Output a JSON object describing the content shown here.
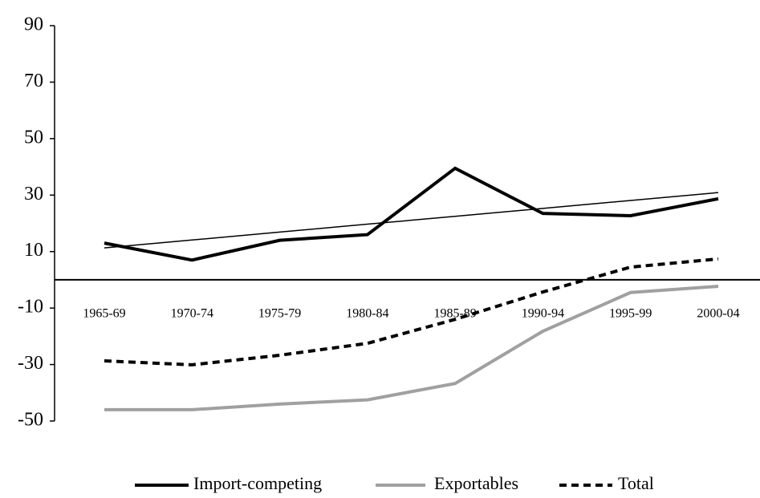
{
  "chart_data": {
    "type": "line",
    "categories": [
      "1965-69",
      "1970-74",
      "1975-79",
      "1980-84",
      "1985-89",
      "1990-94",
      "1995-99",
      "2000-04"
    ],
    "series": [
      {
        "name": "Import-competing",
        "color": "#000000",
        "width": 4,
        "values": [
          13,
          7,
          14,
          16,
          39.5,
          23.5,
          22.7,
          28.7
        ]
      },
      {
        "name": "Exportables",
        "color": "#a0a0a0",
        "width": 4,
        "values": [
          -46,
          -46,
          -44,
          -42.5,
          -36.7,
          -18.2,
          -4.5,
          -2.3
        ]
      },
      {
        "name": "Total",
        "color": "#000000",
        "width": 4,
        "dash": true,
        "values": [
          -28.7,
          -30.1,
          -26.7,
          -22.5,
          -14,
          -4.3,
          4.5,
          7.4
        ]
      },
      {
        "color": "#000000",
        "width": 1.5,
        "values": [
          11.3,
          14.1,
          16.9,
          19.7,
          22.5,
          25.3,
          28.1,
          30.9
        ]
      }
    ],
    "ylim": [
      -50,
      90
    ],
    "yticks": [
      -50,
      -30,
      -10,
      10,
      30,
      50,
      70,
      90
    ],
    "grid": false,
    "legend": "bottom"
  }
}
